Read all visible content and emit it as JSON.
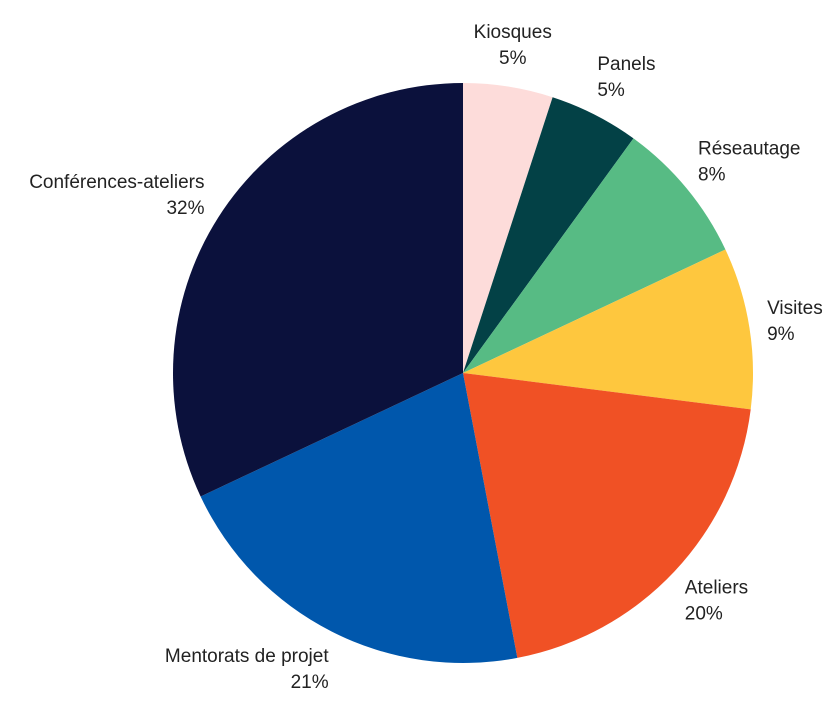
{
  "chart_data": {
    "type": "pie",
    "categories": [
      "Kiosques",
      "Panels",
      "Réseautage",
      "Visites",
      "Ateliers",
      "Mentorats de projet",
      "Conférences-ateliers"
    ],
    "values": [
      5,
      5,
      8,
      9,
      20,
      21,
      32
    ],
    "value_labels": [
      "5%",
      "5%",
      "8%",
      "9%",
      "20%",
      "21%",
      "32%"
    ],
    "colors": [
      "#fddcda",
      "#034146",
      "#57bb84",
      "#fec73e",
      "#f05125",
      "#0057ac",
      "#0b113c"
    ]
  }
}
